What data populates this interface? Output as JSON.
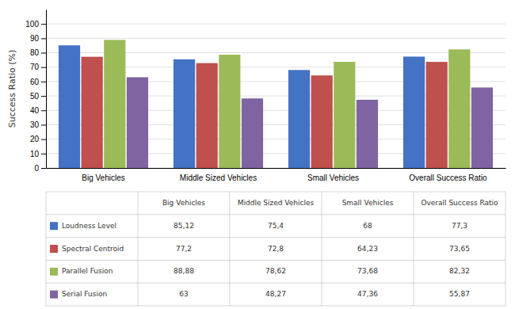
{
  "chart_data": {
    "type": "bar",
    "categories": [
      "Big Vehicles",
      "Middle Sized Vehicles",
      "Small Vehicles",
      "Overall Success Ratio"
    ],
    "series": [
      {
        "name": "Loudness Level",
        "color": "#4472C4",
        "values": [
          85.12,
          75.4,
          68,
          77.3
        ],
        "value_labels": [
          "85,12",
          "75,4",
          "68",
          "77,3"
        ]
      },
      {
        "name": "Spectral Centroid",
        "color": "#C0504D",
        "values": [
          77.2,
          72.8,
          64.23,
          73.65
        ],
        "value_labels": [
          "77,2",
          "72,8",
          "64,23",
          "73,65"
        ]
      },
      {
        "name": "Parallel Fusion",
        "color": "#9BBB59",
        "values": [
          88.88,
          78.62,
          73.68,
          82.32
        ],
        "value_labels": [
          "88,88",
          "78,62",
          "73,68",
          "82,32"
        ]
      },
      {
        "name": "Serial Fusion",
        "color": "#8064A2",
        "values": [
          63,
          48.27,
          47.36,
          55.87
        ],
        "value_labels": [
          "63",
          "48,27",
          "47,36",
          "55,87"
        ]
      }
    ],
    "ylabel": "Success Ratio (%)",
    "ylim": [
      0,
      110
    ],
    "yticks": [
      0,
      10,
      20,
      30,
      40,
      50,
      60,
      70,
      80,
      90,
      100
    ],
    "grid": true
  }
}
